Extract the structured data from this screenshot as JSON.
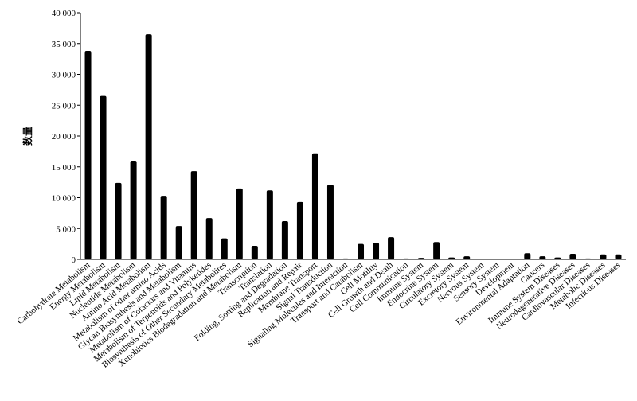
{
  "chart_data": {
    "type": "bar",
    "ylabel": "数量",
    "color": "#000000",
    "categories": [
      "Carbohydrate Metabolism",
      "Energy Metabolism",
      "Lipid Metabolism",
      "Nucleotide Metabolism",
      "Amino Acid Metabolism",
      "Metabolism of other amino Acids",
      "Glycan Biosynthesis and Metabolism",
      "Metabolism of Cofactors and Vitamins",
      "Metabolism of Terpenoids and Polyketides",
      "Biosynthesis of Other Secondary Metabolites",
      "Xenobiotics Biodegradation and Metabolism",
      "Transcription",
      "Translation",
      "Folding, Sorting and Degradation",
      "Replication and Repair",
      "Membrane Transport",
      "Signal Transduction",
      "Signaling Molecules and Interaction",
      "Transport and Catabolism",
      "Cell Motility",
      "Cell Growth and Death",
      "Cell Communication",
      "Immune System",
      "Endocrine System",
      "Circulatory System",
      "Excretory System",
      "Nervous System",
      "Sensory System",
      "Development",
      "Environmental Adaptation",
      "Cancers",
      "Immune System Diseases",
      "Neurodegenerative Diseases",
      "Cardiovascular Diseases",
      "Metabolic Diseases",
      "Infectious Diseases"
    ],
    "values": [
      33800,
      26500,
      12400,
      16000,
      36500,
      10300,
      5400,
      14300,
      6700,
      3400,
      11500,
      2200,
      11200,
      6200,
      9300,
      17200,
      12100,
      150,
      2500,
      2700,
      3600,
      150,
      250,
      2800,
      300,
      500,
      80,
      50,
      100,
      1000,
      500,
      300,
      900,
      150,
      800,
      800
    ],
    "ylim": [
      0,
      40000
    ],
    "yticks": [
      0,
      {
        "value": 5000,
        "label": "5 000"
      },
      {
        "value": 10000,
        "label": "10 000"
      },
      {
        "value": 15000,
        "label": "15 000"
      },
      {
        "value": 20000,
        "label": "20 000"
      },
      {
        "value": 25000,
        "label": "25 000"
      },
      {
        "value": 30000,
        "label": "30 000"
      },
      {
        "value": 35000,
        "label": "35 000"
      },
      {
        "value": 40000,
        "label": "40 000"
      }
    ]
  }
}
